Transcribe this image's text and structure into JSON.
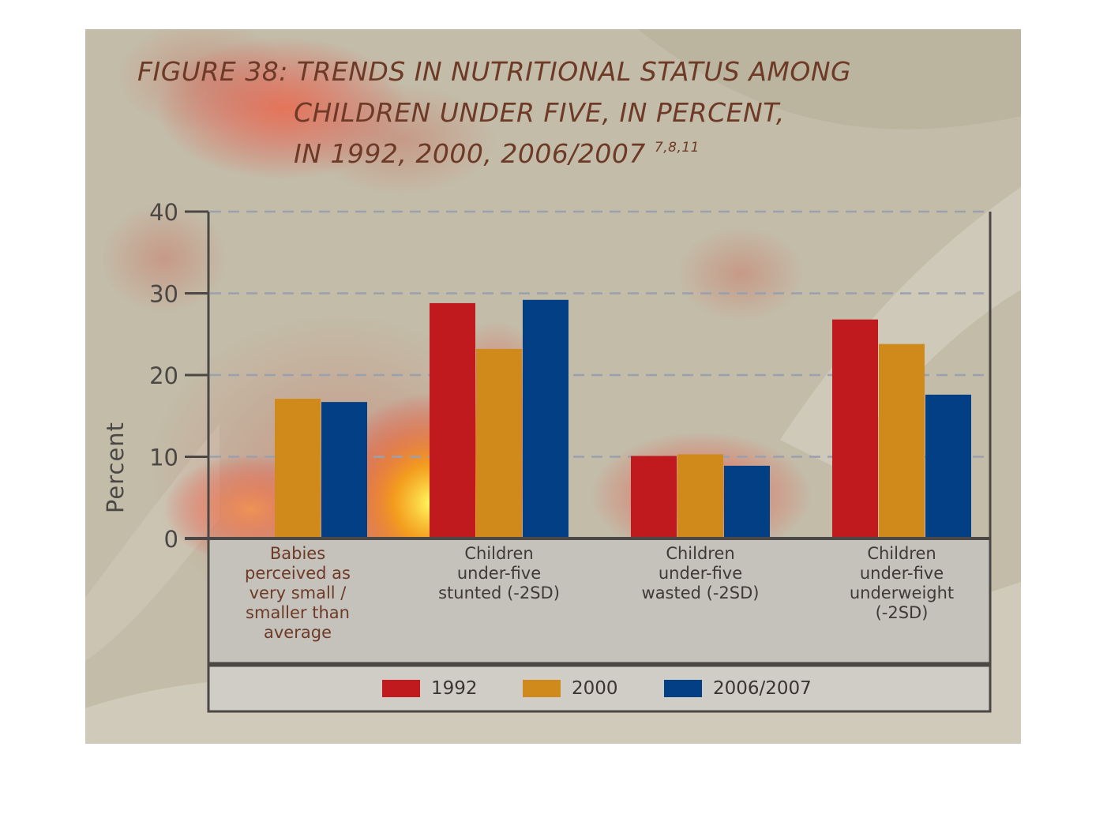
{
  "figure_title": {
    "line1": "FIGURE 38: TRENDS IN NUTRITIONAL STATUS AMONG",
    "line2": "CHILDREN UNDER FIVE, IN PERCENT,",
    "line3": "IN 1992, 2000, 2006/2007",
    "superscript": "7,8,11"
  },
  "chart_data": {
    "type": "bar",
    "title": "FIGURE 38: TRENDS IN NUTRITIONAL STATUS AMONG CHILDREN UNDER FIVE, IN PERCENT, IN 1992, 2000, 2006/2007",
    "ylabel": "Percent",
    "xlabel": "",
    "ylim": [
      0,
      40
    ],
    "yticks": [
      0,
      10,
      20,
      30,
      40
    ],
    "grid": "horizontal dashed",
    "legend_position": "bottom",
    "categories": [
      [
        "Babies",
        "perceived as",
        "very small /",
        "smaller than",
        "average"
      ],
      [
        "Children",
        "under-five",
        "stunted (-2SD)"
      ],
      [
        "Children",
        "under-five",
        "wasted (-2SD)"
      ],
      [
        "Children",
        "under-five",
        "underweight",
        "(-2SD)"
      ]
    ],
    "series": [
      {
        "name": "1992",
        "color": "#c0191e",
        "values": [
          null,
          28.8,
          10.1,
          26.8
        ]
      },
      {
        "name": "2000",
        "color": "#cf8a1b",
        "values": [
          17.1,
          23.2,
          10.3,
          23.8
        ]
      },
      {
        "name": "2006/2007",
        "color": "#023f84",
        "values": [
          16.7,
          29.2,
          8.9,
          17.6
        ]
      }
    ]
  }
}
